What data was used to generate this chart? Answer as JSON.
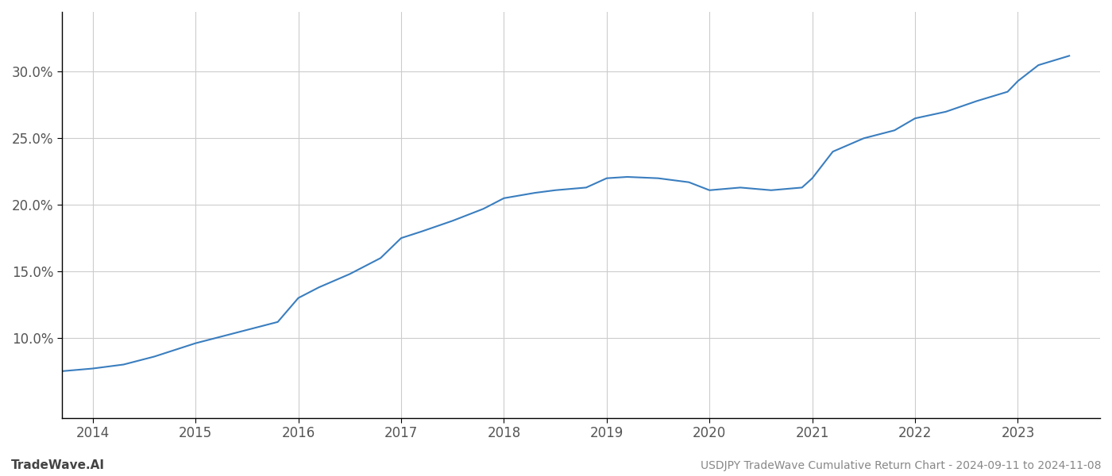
{
  "title": "USDJPY TradeWave Cumulative Return Chart - 2024-09-11 to 2024-11-08",
  "watermark": "TradeWave.AI",
  "line_color": "#3a7ebf",
  "background_color": "#ffffff",
  "grid_color": "#cccccc",
  "x_values": [
    2013.7,
    2014.0,
    2014.3,
    2014.6,
    2015.0,
    2015.4,
    2015.8,
    2016.0,
    2016.2,
    2016.5,
    2016.8,
    2017.0,
    2017.2,
    2017.5,
    2017.8,
    2018.0,
    2018.3,
    2018.5,
    2018.8,
    2019.0,
    2019.2,
    2019.5,
    2019.8,
    2020.0,
    2020.3,
    2020.6,
    2020.9,
    2021.0,
    2021.2,
    2021.5,
    2021.8,
    2022.0,
    2022.3,
    2022.6,
    2022.9,
    2023.0,
    2023.2,
    2023.5
  ],
  "y_values": [
    0.075,
    0.077,
    0.08,
    0.086,
    0.096,
    0.104,
    0.112,
    0.13,
    0.138,
    0.148,
    0.16,
    0.175,
    0.18,
    0.188,
    0.197,
    0.205,
    0.209,
    0.211,
    0.213,
    0.22,
    0.221,
    0.22,
    0.217,
    0.211,
    0.213,
    0.211,
    0.213,
    0.22,
    0.24,
    0.25,
    0.256,
    0.265,
    0.27,
    0.278,
    0.285,
    0.293,
    0.305,
    0.312
  ],
  "xlim": [
    2013.7,
    2023.8
  ],
  "ylim": [
    0.04,
    0.345
  ],
  "yticks": [
    0.1,
    0.15,
    0.2,
    0.25,
    0.3
  ],
  "xticks": [
    2014,
    2015,
    2016,
    2017,
    2018,
    2019,
    2020,
    2021,
    2022,
    2023
  ],
  "line_width": 1.5,
  "title_fontsize": 10,
  "watermark_fontsize": 11,
  "tick_fontsize": 12,
  "left_spine_visible": true,
  "bottom_spine_visible": true
}
